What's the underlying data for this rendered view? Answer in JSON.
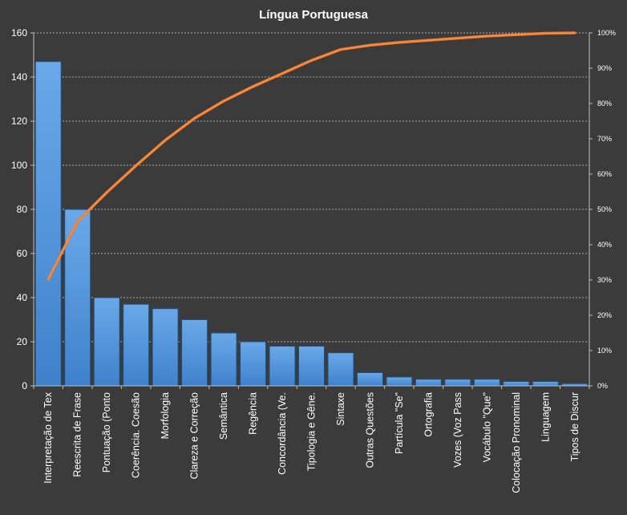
{
  "chart_data": {
    "type": "bar",
    "title": "Língua Portuguesa",
    "categories": [
      "Interpretação de Tex",
      "Reescrita de Frase",
      "Pontuação (Ponto",
      "Coerência. Coesão",
      "Morfologia",
      "Clareza e Correção",
      "Semântica",
      "Regência",
      "Concordância (Ve.",
      "Tipologia e Gêne.",
      "Sintaxe",
      "Outras Questões",
      "Partícula \"Se\"",
      "Ortografia",
      "Vozes (Voz Pass",
      "Vocábulo \"Que\"",
      "Colocação Pronominal",
      "Linguagem",
      "Tipos de Discur"
    ],
    "series": [
      {
        "type": "bar",
        "axis": "left",
        "values": [
          147,
          80,
          40,
          37,
          35,
          30,
          24,
          20,
          18,
          18,
          15,
          6,
          4,
          3,
          3,
          3,
          2,
          2,
          1
        ]
      },
      {
        "type": "line",
        "axis": "right",
        "values": [
          30.2,
          46.6,
          54.8,
          62.4,
          69.6,
          75.8,
          80.7,
          84.8,
          88.5,
          92.2,
          95.3,
          96.5,
          97.3,
          97.9,
          98.5,
          99.1,
          99.5,
          99.9,
          100
        ]
      }
    ],
    "ylim": [
      0,
      160
    ],
    "yticks": [
      "0",
      "20",
      "40",
      "60",
      "80",
      "100",
      "120",
      "140",
      "160"
    ],
    "y2lim": [
      0,
      100
    ],
    "y2ticks": [
      "0%",
      "10%",
      "20%",
      "30%",
      "40%",
      "50%",
      "60%",
      "70%",
      "80%",
      "90%",
      "100%"
    ],
    "grid": true,
    "colors": {
      "background": "#3b3b3b",
      "bar": "#4a8fd6",
      "bar_edge": "#1f4e80",
      "line": "#f07a2a",
      "grid": "#cfcfcf",
      "text": "#ffffff"
    }
  }
}
